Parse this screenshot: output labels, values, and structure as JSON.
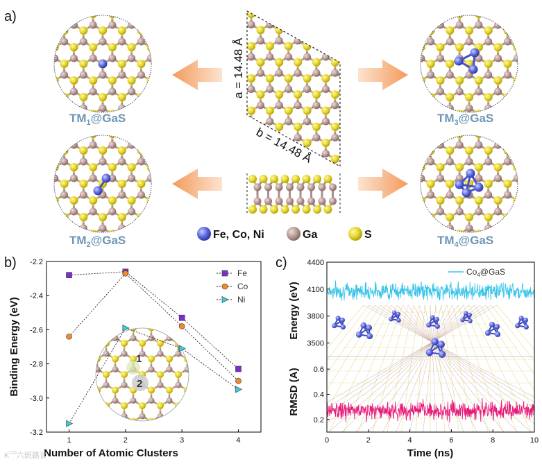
{
  "panels": {
    "a": "a)",
    "b": "b)",
    "c": "c)"
  },
  "panel_a": {
    "lattice_a": "a = 14.48 Å",
    "lattice_b": "b = 14.48 Å",
    "labels": [
      {
        "main": "TM",
        "sub": "1",
        "rest": "@GaS"
      },
      {
        "main": "TM",
        "sub": "2",
        "rest": "@GaS"
      },
      {
        "main": "TM",
        "sub": "3",
        "rest": "@GaS"
      },
      {
        "main": "TM",
        "sub": "4",
        "rest": "@GaS"
      }
    ],
    "legend": [
      {
        "label": "Fe, Co, Ni",
        "color": "#5566dd"
      },
      {
        "label": "Ga",
        "color": "#b08a88"
      },
      {
        "label": "S",
        "color": "#e8d820"
      }
    ],
    "colors": {
      "s_atom": "#e6d62a",
      "ga_atom": "#b99a96",
      "tm_atom": "#5a67e0",
      "arrow": "#f4a46a"
    }
  },
  "chart_data": [
    {
      "type": "line",
      "title": "",
      "xlabel": "Number of Atomic Clusters",
      "ylabel": "Binding Energy (eV)",
      "xlim": [
        0.6,
        4.4
      ],
      "ylim": [
        -3.2,
        -2.2
      ],
      "xticks": [
        "1",
        "2",
        "3",
        "4"
      ],
      "yticks": [
        "-2.2",
        "-2.4",
        "-2.6",
        "-2.8",
        "-3.0",
        "-3.2"
      ],
      "legend_position": "top-right",
      "series": [
        {
          "name": "Fe",
          "color": "#7b2fd3",
          "marker": "square",
          "x": [
            1,
            2,
            3,
            4
          ],
          "values": [
            -2.28,
            -2.26,
            -2.53,
            -2.83
          ]
        },
        {
          "name": "Co",
          "color": "#f08a2c",
          "marker": "circle",
          "x": [
            1,
            2,
            3,
            4
          ],
          "values": [
            -2.64,
            -2.27,
            -2.58,
            -2.9
          ]
        },
        {
          "name": "Ni",
          "color": "#35d0e0",
          "marker": "triangle",
          "x": [
            1,
            2,
            3,
            4
          ],
          "values": [
            -3.15,
            -2.59,
            -2.71,
            -2.95
          ]
        }
      ],
      "inset_sites": [
        "1",
        "2"
      ]
    },
    {
      "type": "line",
      "title": "",
      "xlabel": "Time (ns)",
      "xlim": [
        0,
        10
      ],
      "xticks": [
        "0",
        "2",
        "4",
        "6",
        "8",
        "10"
      ],
      "top_axis": {
        "ylabel": "Energy (eV)",
        "ylim": [
          3350,
          4400
        ],
        "yticks": [
          "4400",
          "4100",
          "3800",
          "3500"
        ]
      },
      "bottom_axis": {
        "ylabel": "RMSD (A)",
        "ylim": [
          0.1,
          0.7
        ],
        "yticks": [
          "0.6",
          "0.4",
          "0.2"
        ]
      },
      "legend_position": "top-right",
      "series": [
        {
          "name": "Co4@GaS",
          "label_main": "Co",
          "label_sub": "4",
          "label_rest": "@GaS",
          "quantity": "Energy",
          "color": "#38c4e8",
          "mean": 4080,
          "spread": 65
        },
        {
          "name": "RMSD",
          "quantity": "RMSD",
          "color": "#e8197a",
          "mean": 0.27,
          "spread": 0.05
        }
      ]
    }
  ],
  "watermark": "六斑路谈"
}
